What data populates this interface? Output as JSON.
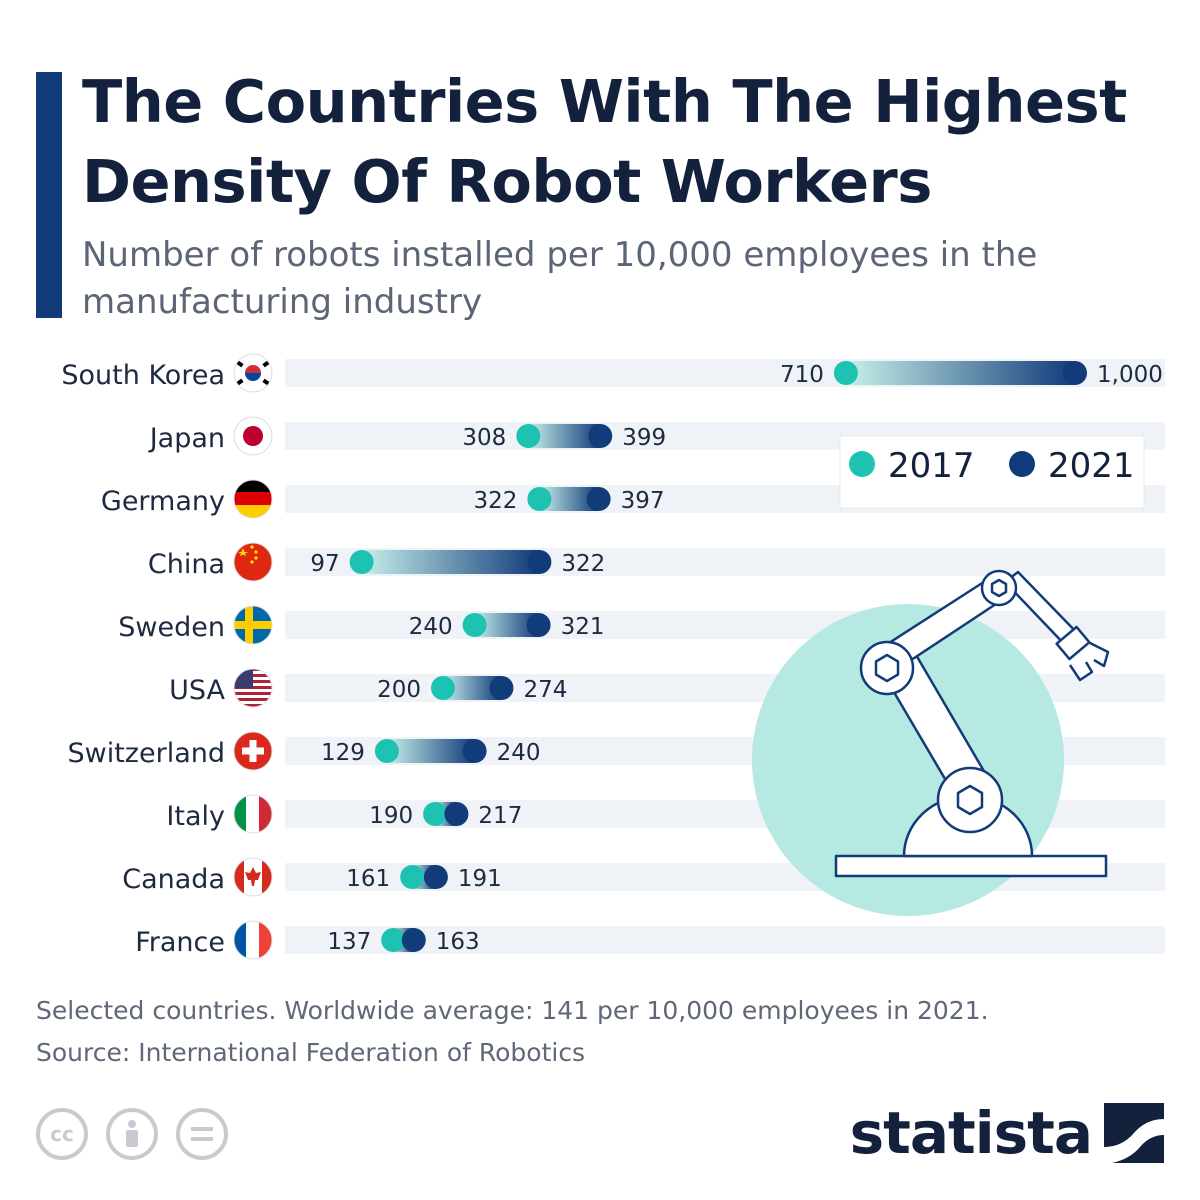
{
  "header": {
    "title": "The Countries With The Highest Density Of Robot Workers",
    "subtitle": "Number of robots installed per 10,000 employees in the manufacturing industry"
  },
  "chart_data": {
    "type": "dumbbell",
    "series": [
      {
        "name": "2017",
        "color": "#1ec2b0"
      },
      {
        "name": "2021",
        "color": "#123b7a"
      }
    ],
    "categories": [
      "South Korea",
      "Japan",
      "Germany",
      "China",
      "Sweden",
      "USA",
      "Switzerland",
      "Italy",
      "Canada",
      "France"
    ],
    "flag_icons": [
      "flag-south-korea-icon",
      "flag-japan-icon",
      "flag-germany-icon",
      "flag-china-icon",
      "flag-sweden-icon",
      "flag-usa-icon",
      "flag-switzerland-icon",
      "flag-italy-icon",
      "flag-canada-icon",
      "flag-france-icon"
    ],
    "values_2017": [
      710,
      308,
      322,
      97,
      240,
      200,
      129,
      190,
      161,
      137
    ],
    "values_2021": [
      1000,
      399,
      397,
      322,
      321,
      274,
      240,
      217,
      191,
      163
    ],
    "labels_2017": [
      "710",
      "308",
      "322",
      "97",
      "240",
      "200",
      "129",
      "190",
      "161",
      "137"
    ],
    "labels_2021": [
      "1,000",
      "399",
      "397",
      "322",
      "321",
      "274",
      "240",
      "217",
      "191",
      "163"
    ],
    "legend_position": "top-right",
    "illustration": "robot-arm-icon"
  },
  "footer": {
    "note": "Selected countries. Worldwide average: 141 per 10,000 employees in 2021.",
    "source": "Source: International Federation of Robotics"
  },
  "branding": {
    "logo_text": "statista",
    "license_icons": [
      "cc-icon",
      "attribution-icon",
      "no-derivatives-icon"
    ]
  }
}
